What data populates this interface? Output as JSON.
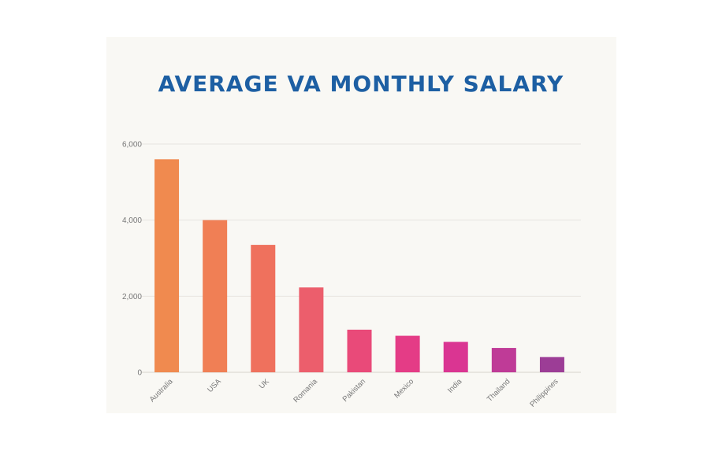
{
  "chart_data": {
    "type": "bar",
    "title": "AVERAGE VA MONTHLY SALARY",
    "xlabel": "",
    "ylabel": "",
    "ylim": [
      0,
      6000
    ],
    "yticks": [
      0,
      2000,
      4000,
      6000
    ],
    "ytick_labels": [
      "0",
      "2,000",
      "4,000",
      "6,000"
    ],
    "grid": true,
    "categories": [
      "Australia",
      "USA",
      "UK",
      "Romania",
      "Pakistan",
      "Mexico",
      "India",
      "Thailand",
      "Philippines"
    ],
    "values": [
      5600,
      4000,
      3350,
      2230,
      1120,
      960,
      800,
      640,
      400
    ],
    "colors": [
      "#f08a4f",
      "#f07f55",
      "#ef715d",
      "#ec5e6c",
      "#e94a79",
      "#e43c86",
      "#da3592",
      "#bf3b97",
      "#9c3d96"
    ]
  }
}
